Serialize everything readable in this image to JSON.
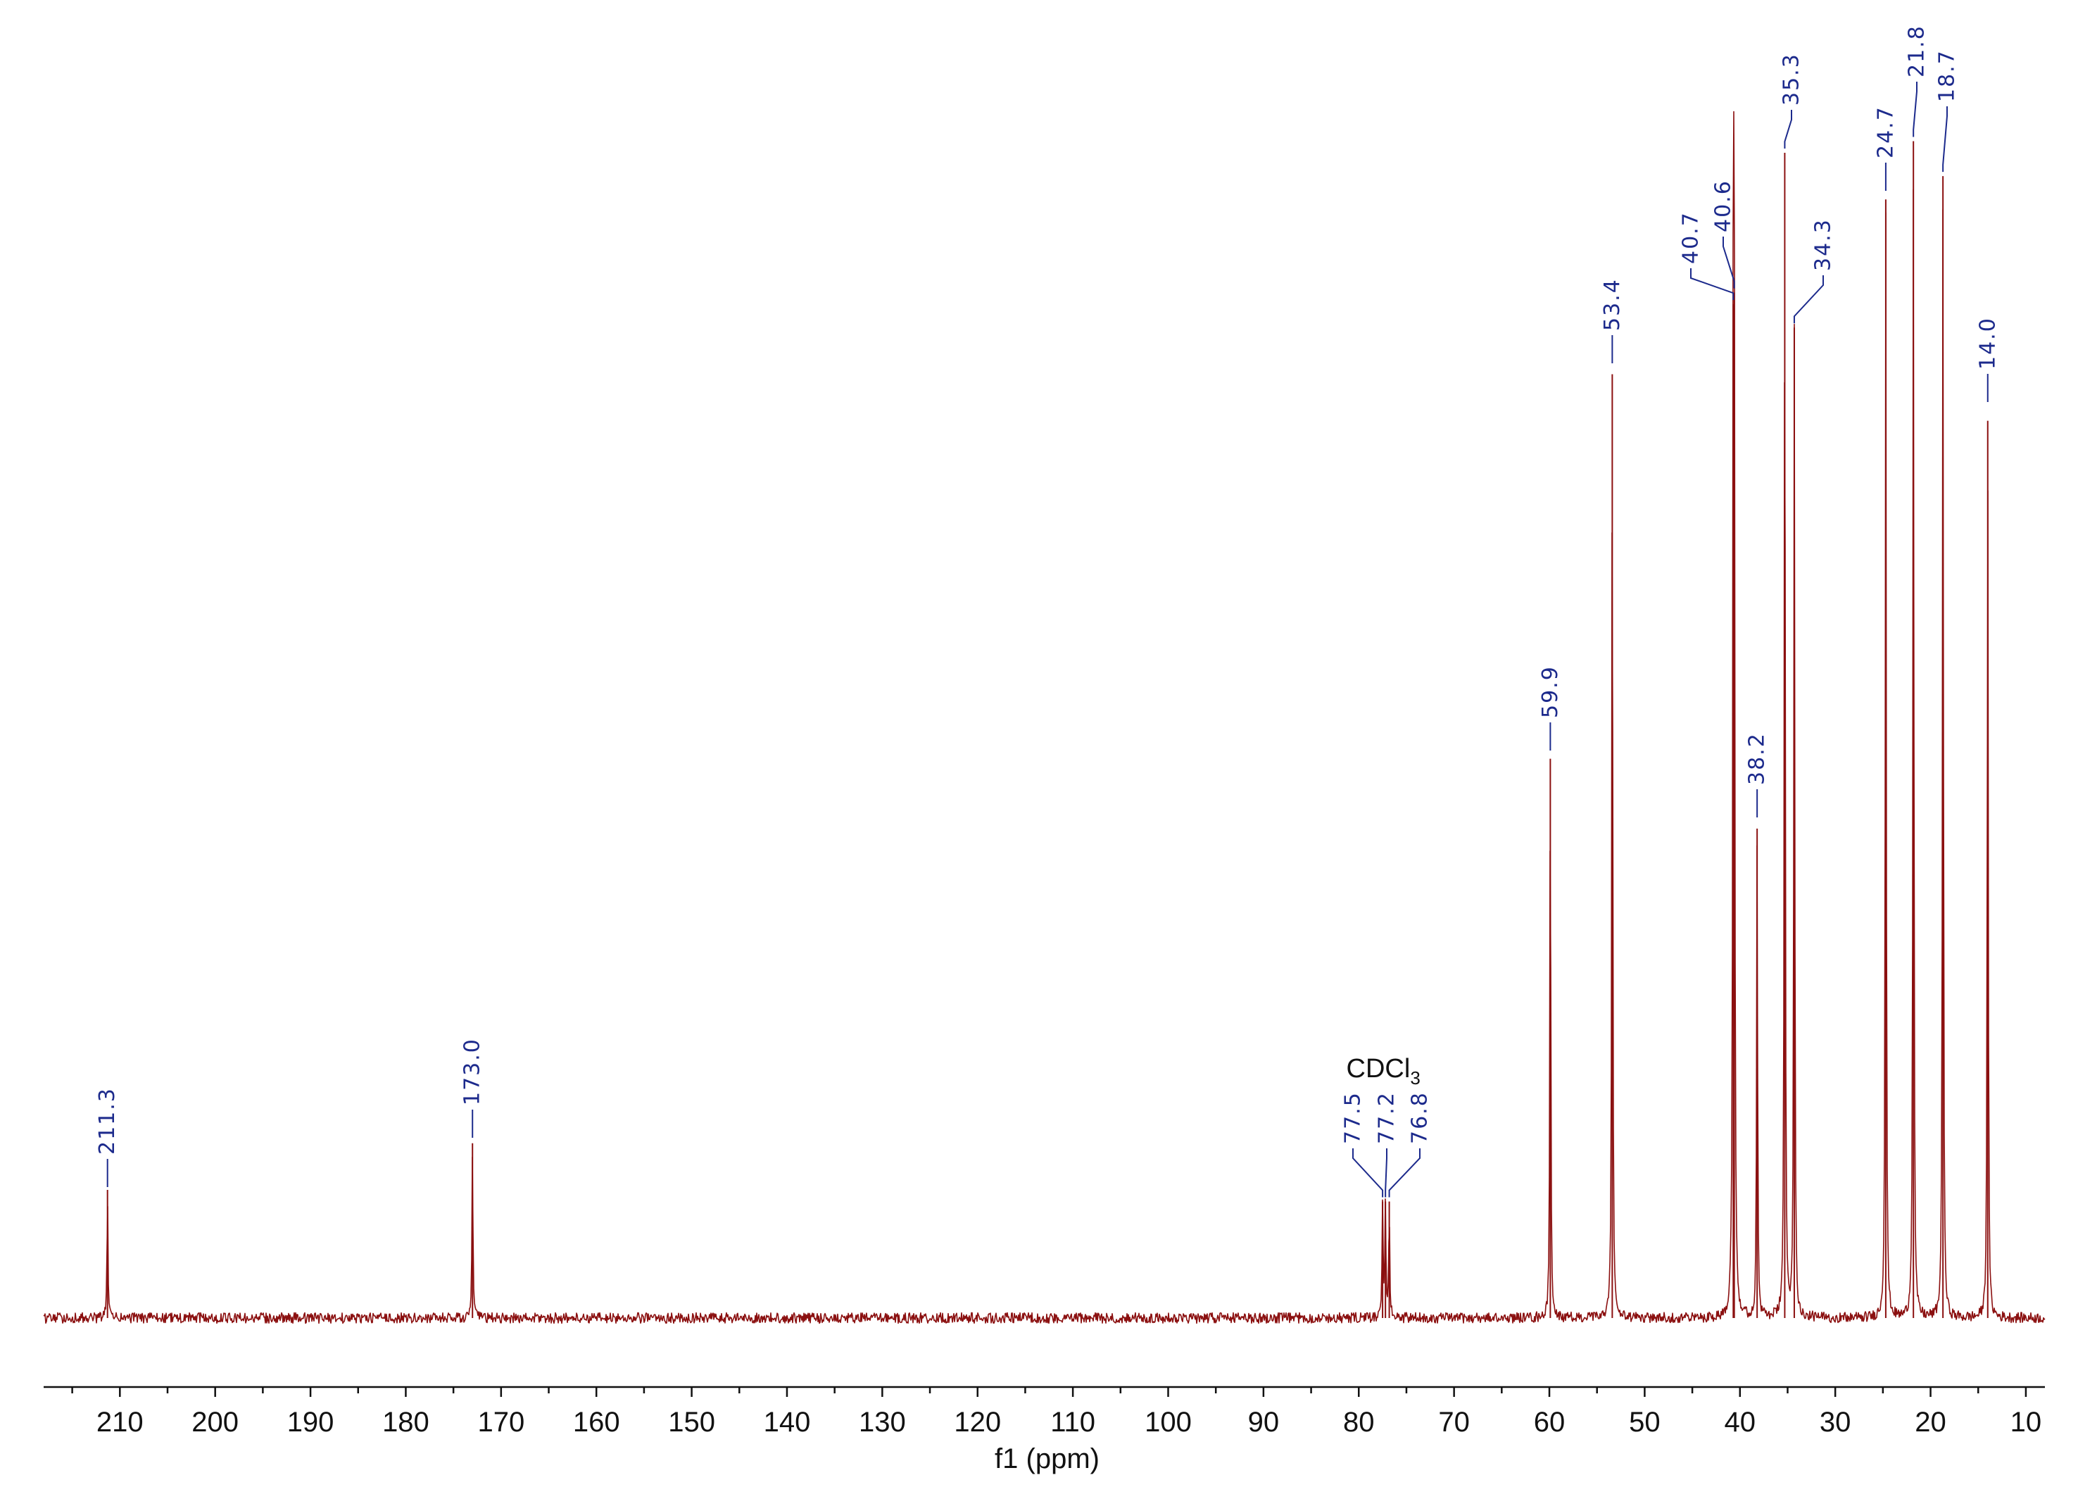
{
  "chart_data": {
    "type": "line",
    "xlabel": "f1 (ppm)",
    "ylabel": "",
    "xlim": [
      218,
      8
    ],
    "x_reversed": true,
    "xticks": [
      210,
      200,
      190,
      180,
      170,
      160,
      150,
      140,
      130,
      120,
      110,
      100,
      90,
      80,
      70,
      60,
      50,
      40,
      30,
      20,
      10
    ],
    "grid": false,
    "colors": {
      "spectrum": "#8b1010",
      "peak_labels": "#1c2a8c",
      "axis": "#111111"
    },
    "peaks": [
      {
        "ppm": 211.3,
        "label": "211.3",
        "intensity": 0.11
      },
      {
        "ppm": 173.0,
        "label": "173.0",
        "intensity": 0.15
      },
      {
        "ppm": 77.5,
        "label": "77.5",
        "intensity": 0.1
      },
      {
        "ppm": 77.2,
        "label": "77.2",
        "intensity": 0.1
      },
      {
        "ppm": 76.8,
        "label": "76.8",
        "intensity": 0.1
      },
      {
        "ppm": 59.9,
        "label": "59.9",
        "intensity": 0.48
      },
      {
        "ppm": 53.4,
        "label": "53.4",
        "intensity": 0.81
      },
      {
        "ppm": 40.7,
        "label": "40.7",
        "intensity": 0.87
      },
      {
        "ppm": 40.6,
        "label": "40.6",
        "intensity": 0.88
      },
      {
        "ppm": 38.2,
        "label": "38.2",
        "intensity": 0.42
      },
      {
        "ppm": 35.3,
        "label": "35.3",
        "intensity": 1.0
      },
      {
        "ppm": 34.3,
        "label": "34.3",
        "intensity": 0.85
      },
      {
        "ppm": 24.7,
        "label": "24.7",
        "intensity": 0.96
      },
      {
        "ppm": 21.8,
        "label": "21.8",
        "intensity": 1.01
      },
      {
        "ppm": 18.7,
        "label": "18.7",
        "intensity": 0.98
      },
      {
        "ppm": 14.0,
        "label": "14.0",
        "intensity": 0.77
      }
    ],
    "annotations": [
      {
        "text": "CDCl",
        "subscript": "3",
        "ppm": 77.2
      }
    ]
  }
}
